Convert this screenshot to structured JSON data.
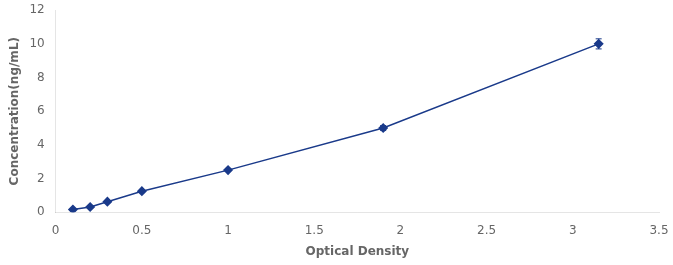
{
  "chart_data": {
    "type": "line",
    "xlabel": "Optical Density",
    "ylabel": "Concentration(ng/mL)",
    "x": [
      0.1,
      0.2,
      0.3,
      0.5,
      1.0,
      1.9,
      3.15
    ],
    "values": [
      0.156,
      0.312,
      0.625,
      1.25,
      2.5,
      5.0,
      10.0
    ],
    "errors": [
      0.00468,
      0.00936,
      0.01875,
      0.0375,
      0.075,
      0.15,
      0.3
    ],
    "color": "#1a3a8a",
    "marker": "diamond",
    "xlim": [
      0,
      3.5
    ],
    "ylim": [
      0,
      12
    ],
    "xticks": [
      0,
      0.5,
      1,
      1.5,
      2,
      2.5,
      3,
      3.5
    ],
    "yticks": [
      0,
      2,
      4,
      6,
      8,
      10,
      12
    ],
    "grid": false
  }
}
